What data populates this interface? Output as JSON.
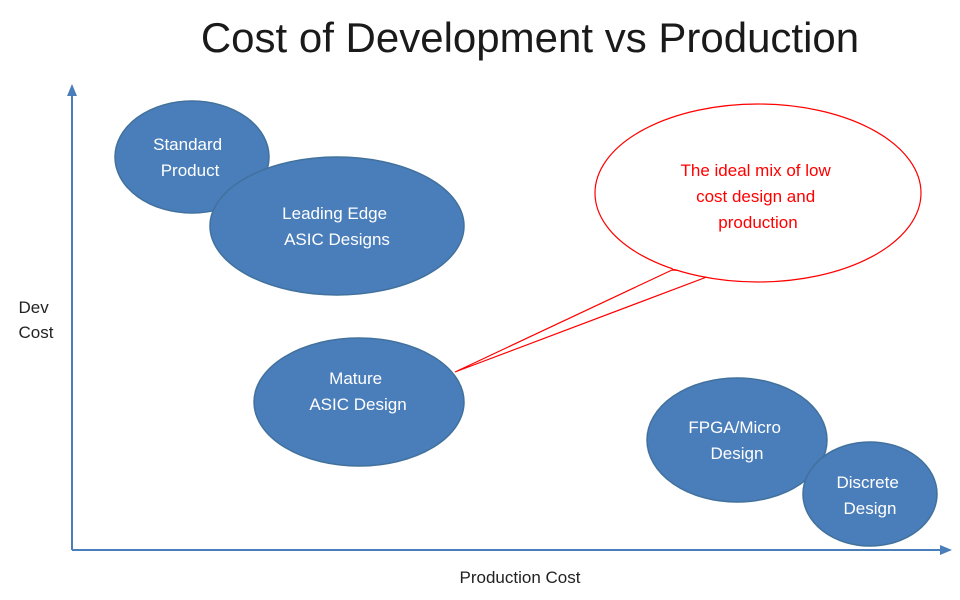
{
  "title": "Cost of Development vs Production",
  "axes": {
    "y_label_lines": [
      "Dev",
      "Cost"
    ],
    "x_label": "Production Cost"
  },
  "colors": {
    "bubble_fill": "#4a7ebb",
    "bubble_stroke": "#41719c",
    "callout_stroke": "#ff0000",
    "callout_text": "#ff0000",
    "axis": "#4a7ebb"
  },
  "bubbles": [
    {
      "id": "standard-product",
      "lines": [
        "Standard",
        "Product"
      ]
    },
    {
      "id": "leading-edge-asic",
      "lines": [
        "Leading Edge",
        "ASIC Designs"
      ]
    },
    {
      "id": "mature-asic",
      "lines": [
        "Mature",
        "ASIC Design"
      ]
    },
    {
      "id": "fpga-micro",
      "lines": [
        "FPGA/Micro",
        "Design"
      ]
    },
    {
      "id": "discrete",
      "lines": [
        "Discrete",
        "Design"
      ]
    }
  ],
  "callout": {
    "lines": [
      "The ideal mix of low",
      "cost design and",
      "production"
    ]
  }
}
